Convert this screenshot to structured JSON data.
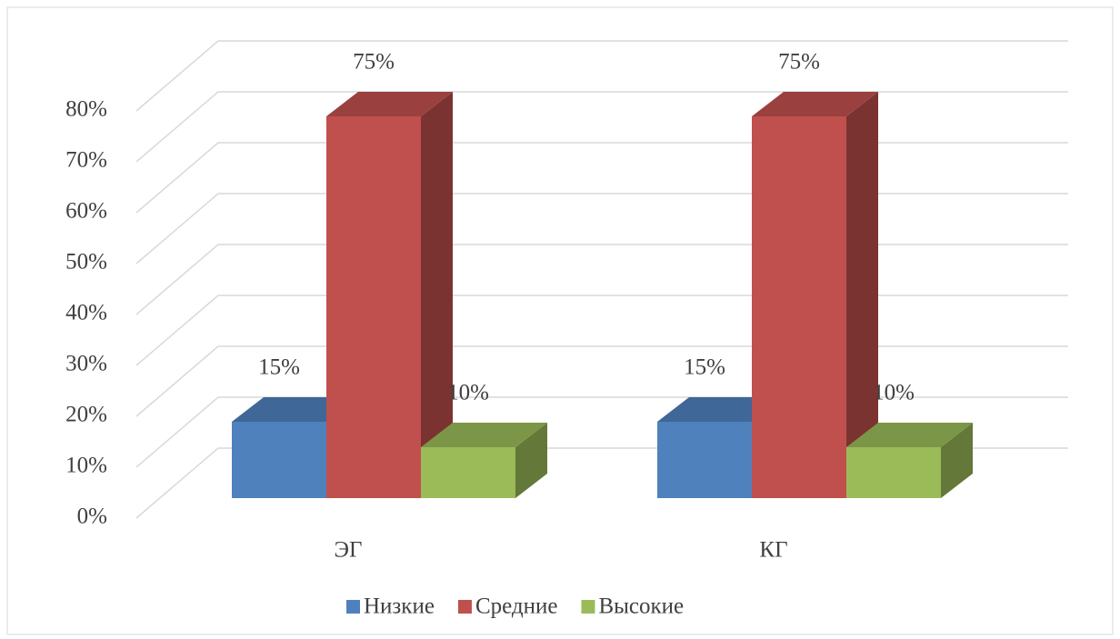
{
  "chart_data": {
    "type": "bar3d",
    "categories": [
      "ЭГ",
      "КГ"
    ],
    "series": [
      {
        "name": "Низкие",
        "color": "#4f81bd",
        "values": [
          15,
          15
        ],
        "value_labels": [
          "15%",
          "15%"
        ]
      },
      {
        "name": "Средние",
        "color": "#c0504d",
        "values": [
          75,
          75
        ],
        "value_labels": [
          "75%",
          "75%"
        ]
      },
      {
        "name": "Высокие",
        "color": "#9bbb59",
        "values": [
          10,
          10
        ],
        "value_labels": [
          "10%",
          "10%"
        ]
      }
    ],
    "ylim": [
      0,
      80
    ],
    "yticks": [
      {
        "value": 0,
        "label": "0%"
      },
      {
        "value": 10,
        "label": "10%"
      },
      {
        "value": 20,
        "label": "20%"
      },
      {
        "value": 30,
        "label": "30%"
      },
      {
        "value": 40,
        "label": "40%"
      },
      {
        "value": 50,
        "label": "50%"
      },
      {
        "value": 60,
        "label": "60%"
      },
      {
        "value": 70,
        "label": "70%"
      },
      {
        "value": 80,
        "label": "80%"
      }
    ],
    "grid": true,
    "legend": "bottom"
  }
}
